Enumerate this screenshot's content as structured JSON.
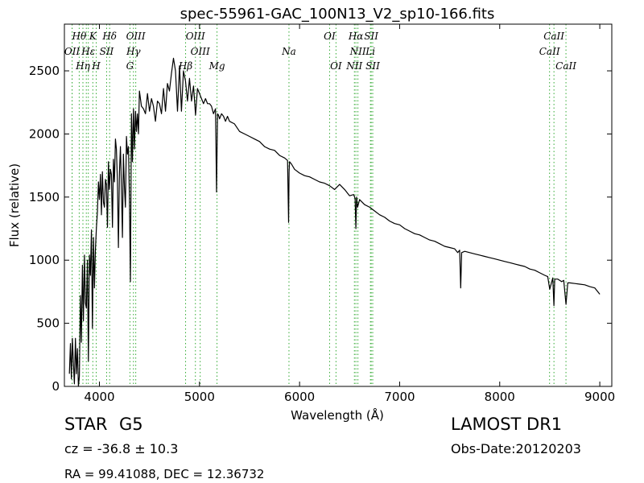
{
  "chart_data": {
    "type": "line",
    "title": "spec-55961-GAC_100N13_V2_sp10-166.fits",
    "xlabel": "Wavelength (Å)",
    "ylabel": "Flux (relative)",
    "xlim": [
      3650,
      9120
    ],
    "ylim": [
      0,
      2870
    ],
    "x_ticks": [
      4000,
      5000,
      6000,
      7000,
      8000,
      9000
    ],
    "y_ticks": [
      0,
      500,
      1000,
      1500,
      2000,
      2500
    ],
    "grid": false,
    "legend": "none",
    "line_color": "#000000",
    "marker_color": "#33aa33",
    "series": [
      {
        "x": [
          3700,
          3710,
          3720,
          3730,
          3740,
          3750,
          3760,
          3770,
          3780,
          3790,
          3800,
          3810,
          3820,
          3830,
          3840,
          3850,
          3860,
          3870,
          3880,
          3890,
          3900,
          3910,
          3920,
          3930,
          3940,
          3950,
          3960,
          3970,
          3980,
          3990,
          4000,
          4010,
          4020,
          4030,
          4040,
          4050,
          4060,
          4070,
          4080,
          4090,
          4100,
          4110,
          4120,
          4130,
          4140,
          4150,
          4160,
          4170,
          4180,
          4190,
          4200,
          4210,
          4220,
          4230,
          4240,
          4250,
          4260,
          4270,
          4280,
          4290,
          4300,
          4310,
          4320,
          4330,
          4340,
          4350,
          4360,
          4370,
          4380,
          4390,
          4400,
          4420,
          4440,
          4460,
          4480,
          4500,
          4520,
          4540,
          4560,
          4580,
          4600,
          4620,
          4640,
          4660,
          4680,
          4700,
          4720,
          4740,
          4760,
          4780,
          4800,
          4820,
          4840,
          4860,
          4880,
          4900,
          4920,
          4940,
          4960,
          4980,
          5000,
          5020,
          5040,
          5060,
          5080,
          5100,
          5120,
          5140,
          5160,
          5170,
          5180,
          5190,
          5200,
          5220,
          5240,
          5260,
          5280,
          5300,
          5350,
          5400,
          5450,
          5500,
          5550,
          5600,
          5650,
          5700,
          5750,
          5800,
          5850,
          5880,
          5890,
          5895,
          5900,
          5920,
          5950,
          6000,
          6050,
          6100,
          6150,
          6200,
          6250,
          6300,
          6350,
          6400,
          6450,
          6500,
          6540,
          6555,
          6563,
          6570,
          6580,
          6600,
          6650,
          6700,
          6750,
          6800,
          6850,
          6900,
          6950,
          7000,
          7050,
          7100,
          7150,
          7200,
          7250,
          7300,
          7350,
          7400,
          7450,
          7500,
          7550,
          7580,
          7600,
          7610,
          7620,
          7650,
          7700,
          7750,
          7800,
          7850,
          7900,
          7950,
          8000,
          8050,
          8100,
          8150,
          8200,
          8250,
          8300,
          8350,
          8400,
          8450,
          8480,
          8500,
          8530,
          8542,
          8550,
          8580,
          8620,
          8640,
          8662,
          8680,
          8700,
          8750,
          8800,
          8850,
          8900,
          8950,
          9000
        ],
        "y": [
          100,
          340,
          60,
          380,
          180,
          20,
          380,
          100,
          300,
          0,
          80,
          720,
          350,
          960,
          520,
          1040,
          660,
          620,
          1000,
          200,
          1040,
          880,
          1240,
          460,
          1180,
          780,
          1080,
          1260,
          1380,
          1620,
          1480,
          1680,
          1360,
          1700,
          1460,
          1420,
          1640,
          1600,
          1260,
          1780,
          1560,
          1720,
          1680,
          1260,
          1800,
          1620,
          1960,
          1880,
          1620,
          1100,
          1700,
          1900,
          1560,
          1180,
          1840,
          1580,
          1420,
          1980,
          1840,
          1900,
          1480,
          830,
          2160,
          1780,
          2200,
          1880,
          2180,
          2020,
          2160,
          2000,
          2340,
          2220,
          2200,
          2160,
          2320,
          2180,
          2280,
          2220,
          2100,
          2260,
          2240,
          2160,
          2360,
          2180,
          2400,
          2340,
          2480,
          2600,
          2500,
          2180,
          2540,
          2180,
          2500,
          2420,
          2260,
          2440,
          2260,
          2380,
          2150,
          2360,
          2320,
          2280,
          2240,
          2280,
          2240,
          2240,
          2220,
          2160,
          2200,
          1540,
          2160,
          2150,
          2120,
          2160,
          2140,
          2100,
          2140,
          2100,
          2080,
          2020,
          2000,
          1980,
          1960,
          1940,
          1900,
          1880,
          1870,
          1830,
          1810,
          1790,
          1300,
          1700,
          1780,
          1760,
          1720,
          1690,
          1670,
          1660,
          1640,
          1620,
          1610,
          1590,
          1560,
          1600,
          1560,
          1510,
          1520,
          1490,
          1250,
          1500,
          1420,
          1480,
          1440,
          1420,
          1390,
          1360,
          1340,
          1310,
          1290,
          1280,
          1250,
          1230,
          1210,
          1200,
          1180,
          1160,
          1150,
          1130,
          1110,
          1100,
          1090,
          1060,
          1080,
          780,
          1060,
          1070,
          1060,
          1050,
          1040,
          1030,
          1020,
          1010,
          1000,
          990,
          980,
          970,
          960,
          950,
          930,
          920,
          900,
          880,
          870,
          770,
          860,
          640,
          850,
          850,
          830,
          840,
          650,
          820,
          820,
          815,
          810,
          805,
          790,
          780,
          730
        ]
      }
    ],
    "line_annotations": [
      {
        "name": "OII",
        "wavelength": 3727,
        "label_y": "b"
      },
      {
        "name": "Hθ",
        "wavelength": 3798,
        "label_y": "a"
      },
      {
        "name": "OII",
        "wavelength": 3727,
        "label_y": "c",
        "skip": true
      },
      {
        "name": "Hη",
        "wavelength": 3835,
        "label_y": "c"
      },
      {
        "name": "K",
        "wavelength": 3934,
        "label_y": "a"
      },
      {
        "name": "Hε",
        "wavelength": 3889,
        "label_y": "b"
      },
      {
        "name": "H",
        "wavelength": 3968,
        "label_y": "c"
      },
      {
        "name": "SII",
        "wavelength": 4072,
        "label_y": "b"
      },
      {
        "name": "NeIII",
        "wavelength": 3869,
        "label_y": "c",
        "skip": true
      },
      {
        "name": "Hδ",
        "wavelength": 4102,
        "label_y": "a"
      },
      {
        "name": "OIII",
        "wavelength": 4363,
        "label_y": "a"
      },
      {
        "name": "Hγ",
        "wavelength": 4340,
        "label_y": "b"
      },
      {
        "name": "G",
        "wavelength": 4305,
        "label_y": "c"
      },
      {
        "name": "OIII",
        "wavelength": 4959,
        "label_y": "a"
      },
      {
        "name": "OIII",
        "wavelength": 5007,
        "label_y": "b"
      },
      {
        "name": "Hβ",
        "wavelength": 4861,
        "label_y": "c"
      },
      {
        "name": "Mg",
        "wavelength": 5175,
        "label_y": "c"
      },
      {
        "name": "Na",
        "wavelength": 5894,
        "label_y": "b"
      },
      {
        "name": "OI",
        "wavelength": 6300,
        "label_y": "a"
      },
      {
        "name": "OI",
        "wavelength": 6364,
        "label_y": "c"
      },
      {
        "name": "Hα",
        "wavelength": 6563,
        "label_y": "a"
      },
      {
        "name": "SII",
        "wavelength": 6716,
        "label_y": "a"
      },
      {
        "name": "NII",
        "wavelength": 6583,
        "label_y": "b"
      },
      {
        "name": "NII",
        "wavelength": 6548,
        "label_y": "c"
      },
      {
        "name": "SII",
        "wavelength": 6731,
        "label_y": "c"
      },
      {
        "name": "Li",
        "wavelength": 6708,
        "label_y": "b"
      },
      {
        "name": "CaII",
        "wavelength": 8542,
        "label_y": "a"
      },
      {
        "name": "CaII",
        "wavelength": 8498,
        "label_y": "b"
      },
      {
        "name": "CaII",
        "wavelength": 8662,
        "label_y": "c"
      }
    ]
  },
  "info": {
    "object_class": "STAR",
    "subclass": "G5",
    "redshift": "cz = -36.8 ± 10.3",
    "coords": "RA = 99.41088, DEC = 12.36732",
    "survey": "LAMOST DR1",
    "obs_date": "Obs-Date:20120203"
  }
}
